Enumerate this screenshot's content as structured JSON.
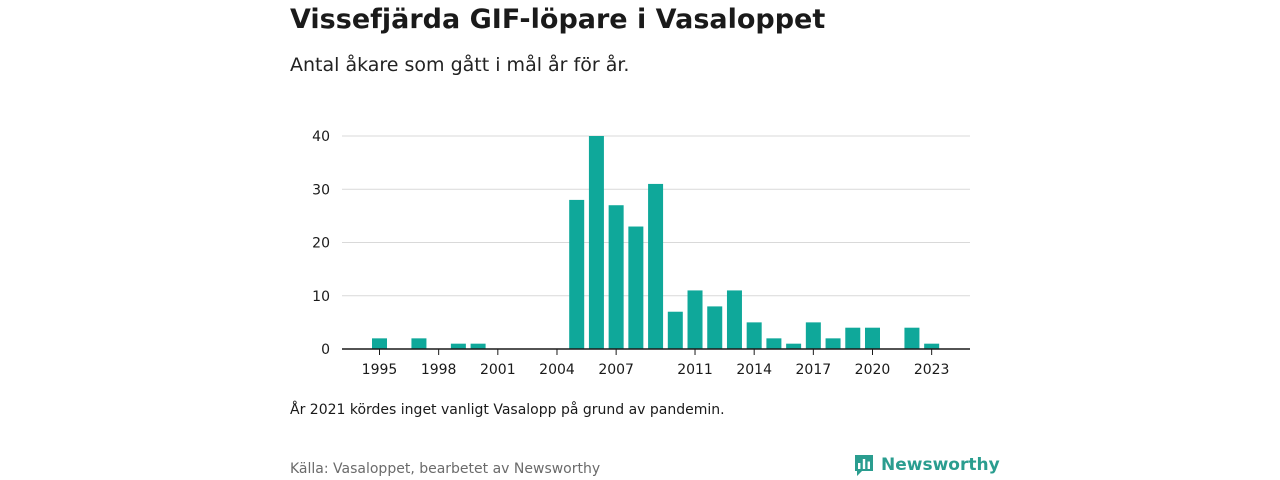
{
  "header": {
    "title": "Vissefjärda GIF-löpare i Vasaloppet",
    "subtitle": "Antal åkare som gått i mål år för år."
  },
  "footer": {
    "note": "År 2021 kördes inget vanligt Vasalopp på grund av pandemin.",
    "source": "Källa: Vasaloppet, bearbetet av Newsworthy",
    "brand": "Newsworthy",
    "brand_icon": "newsworthy-logo-icon"
  },
  "colors": {
    "bar": "#0fa89a",
    "grid": "#d9d9d9",
    "axis": "#1a1a1a",
    "brand": "#2a9d8f"
  },
  "chart_data": {
    "type": "bar",
    "x": [
      1995,
      1996,
      1997,
      1998,
      1999,
      2000,
      2001,
      2002,
      2003,
      2004,
      2005,
      2006,
      2007,
      2008,
      2009,
      2010,
      2011,
      2012,
      2013,
      2014,
      2015,
      2016,
      2017,
      2018,
      2019,
      2020,
      2021,
      2022,
      2023
    ],
    "values": [
      2,
      0,
      2,
      0,
      1,
      1,
      0,
      0,
      0,
      0,
      28,
      40,
      27,
      23,
      31,
      7,
      11,
      8,
      11,
      5,
      2,
      1,
      5,
      2,
      4,
      4,
      0,
      4,
      1
    ],
    "x_ticks": [
      "1995",
      "1998",
      "2001",
      "2004",
      "2007",
      "2011",
      "2014",
      "2017",
      "2020",
      "2023"
    ],
    "y_ticks": [
      "0",
      "10",
      "20",
      "30",
      "40"
    ],
    "ylim": [
      0,
      40
    ],
    "grid": true
  }
}
